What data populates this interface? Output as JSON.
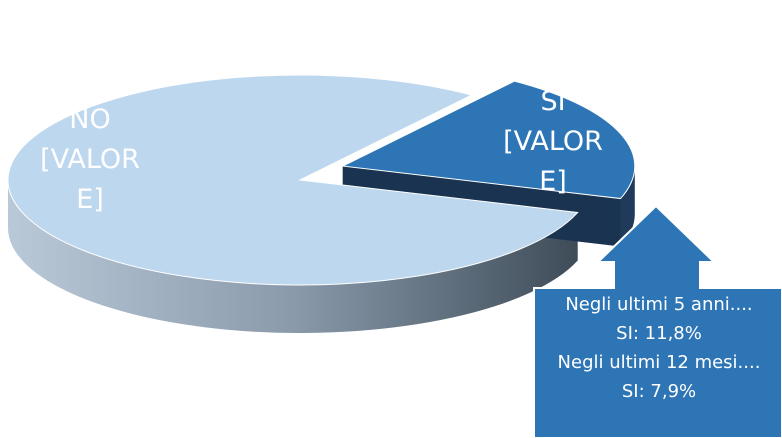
{
  "chart_data": {
    "type": "pie",
    "categories": [
      "NO",
      "SI"
    ],
    "values": [
      80,
      20
    ],
    "value_labels": [
      "[VALORE]",
      "[VALORE]"
    ],
    "colors": [
      "#bdd7ee",
      "#2e75b6"
    ],
    "annotation": [
      "Negli ultimi 5 anni....",
      "SI:  11,8%",
      "Negli ultimi 12 mesi....",
      "SI: 7,9%"
    ]
  }
}
